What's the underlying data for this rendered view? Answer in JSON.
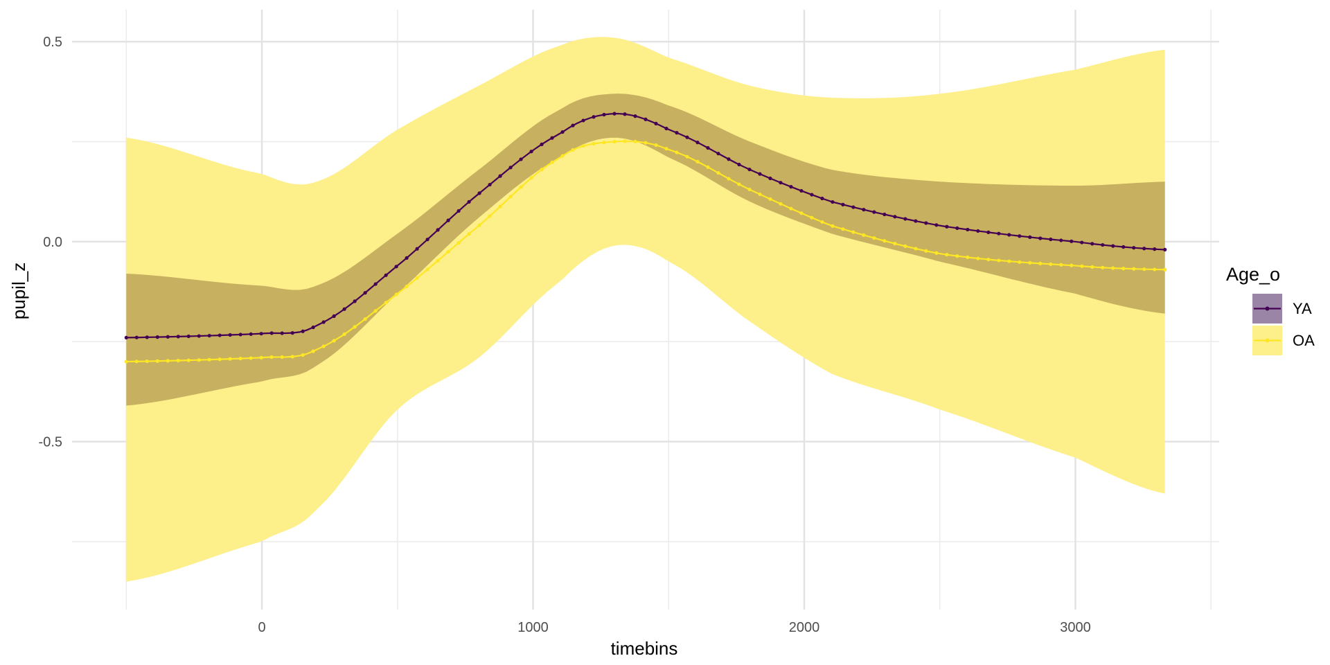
{
  "chart_data": {
    "type": "line",
    "xlabel": "timebins",
    "ylabel": "pupil_z",
    "xlim": [
      -700,
      3530
    ],
    "ylim": [
      -0.92,
      0.58
    ],
    "x_ticks": [
      0,
      1000,
      2000,
      3000
    ],
    "x_tick_labels": [
      "0",
      "1000",
      "2000",
      "3000"
    ],
    "x_minor_ticks": [
      -500,
      500,
      1500,
      2500,
      3500
    ],
    "y_ticks": [
      0.5,
      0.0,
      -0.5
    ],
    "y_tick_labels": [
      "0.5",
      "0.0",
      "-0.5"
    ],
    "y_minor_ticks": [
      0.25,
      -0.25,
      -0.75
    ],
    "grid": true,
    "legend": {
      "title": "Age_o",
      "position": "right",
      "entries": [
        "YA",
        "OA"
      ]
    },
    "x": [
      -500,
      0,
      200,
      500,
      800,
      1100,
      1300,
      1500,
      1800,
      2100,
      2500,
      3000,
      3330
    ],
    "series": [
      {
        "name": "YA",
        "color": "#440154",
        "fill": "#7f6f8f",
        "values": [
          -0.24,
          -0.23,
          -0.21,
          -0.06,
          0.12,
          0.27,
          0.32,
          0.28,
          0.18,
          0.1,
          0.04,
          0.0,
          -0.02
        ],
        "lower": [
          -0.41,
          -0.35,
          -0.31,
          -0.13,
          0.06,
          0.21,
          0.26,
          0.21,
          0.1,
          0.02,
          -0.05,
          -0.13,
          -0.18
        ],
        "upper": [
          -0.08,
          -0.11,
          -0.11,
          0.02,
          0.18,
          0.33,
          0.37,
          0.34,
          0.25,
          0.18,
          0.15,
          0.14,
          0.15
        ]
      },
      {
        "name": "OA",
        "color": "#fde725",
        "fill": "#fdef8a",
        "values": [
          -0.3,
          -0.29,
          -0.27,
          -0.13,
          0.04,
          0.21,
          0.25,
          0.23,
          0.13,
          0.04,
          -0.03,
          -0.06,
          -0.07
        ],
        "lower": [
          -0.85,
          -0.75,
          -0.67,
          -0.42,
          -0.29,
          -0.1,
          -0.01,
          -0.05,
          -0.2,
          -0.33,
          -0.42,
          -0.54,
          -0.63
        ],
        "upper": [
          0.26,
          0.17,
          0.15,
          0.28,
          0.39,
          0.49,
          0.51,
          0.46,
          0.39,
          0.36,
          0.37,
          0.43,
          0.48
        ]
      }
    ]
  }
}
